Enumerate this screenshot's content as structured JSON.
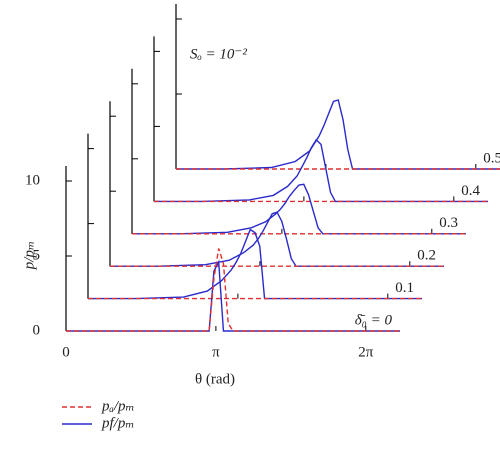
{
  "chart_data": {
    "type": "line",
    "annotation": "Sₒ = 10⁻²",
    "xlabel": "θ (rad)",
    "ylabel": "p/pₘ",
    "x": [
      0,
      1,
      2,
      2.5,
      2.8,
      3.0,
      3.1,
      3.2,
      3.3,
      3.4,
      3.5,
      3.6,
      3.7,
      3.8,
      3.9,
      4.0,
      4.5,
      7.0
    ],
    "xlim": [
      0,
      7.0
    ],
    "xticks": [
      {
        "value": 0,
        "label": "0"
      },
      {
        "value": 3.14159,
        "label": "π"
      },
      {
        "value": 6.28318,
        "label": "2π"
      }
    ],
    "ylim": [
      0,
      11
    ],
    "yticks": [
      0,
      5,
      10
    ],
    "layers": [
      "δ̄₀ = 0",
      "0.1",
      "0.2",
      "0.3",
      "0.4",
      "0.5"
    ],
    "series": [
      {
        "name": "pₐ/pₘ",
        "color": "#e03030",
        "dashed": true,
        "values": [
          [
            0,
            0,
            0,
            0,
            0,
            0,
            3.5,
            5.5,
            4.5,
            0.5,
            0,
            0,
            0,
            0,
            0,
            0,
            0,
            0
          ],
          [
            0,
            0,
            0,
            0,
            0,
            0,
            0,
            0,
            0,
            0,
            0,
            0,
            0,
            0,
            0,
            0,
            0,
            0
          ],
          [
            0,
            0,
            0,
            0,
            0,
            0,
            0,
            0,
            0,
            0,
            0,
            0,
            0,
            0,
            0,
            0,
            0,
            0
          ],
          [
            0,
            0,
            0,
            0,
            0,
            0,
            0,
            0,
            0,
            0,
            0,
            0,
            0,
            0,
            0,
            0,
            0,
            0
          ],
          [
            0,
            0,
            0,
            0,
            0,
            0,
            0,
            0,
            0,
            0,
            0,
            0,
            0,
            0,
            0,
            0,
            0,
            0
          ],
          [
            0,
            0,
            0,
            0,
            0,
            0,
            0,
            0,
            0,
            0,
            0,
            0,
            0,
            0,
            0,
            0,
            0,
            0
          ]
        ]
      },
      {
        "name": "pf/pₘ",
        "color": "#2a2acc",
        "dashed": false,
        "values": [
          [
            0,
            0,
            0,
            0,
            0,
            0,
            4.0,
            4.6,
            0,
            0,
            0,
            0,
            0,
            0,
            0,
            0,
            0,
            0
          ],
          [
            0,
            0,
            0.1,
            0.5,
            1.2,
            1.9,
            2.4,
            3.0,
            3.8,
            4.6,
            4.4,
            3.5,
            0,
            0,
            0,
            0,
            0,
            0
          ],
          [
            0,
            0,
            0.1,
            0.4,
            0.9,
            1.4,
            1.8,
            2.3,
            2.9,
            3.5,
            3.6,
            3.0,
            1.8,
            0.5,
            0,
            0,
            0,
            0
          ],
          [
            0,
            0,
            0.1,
            0.4,
            0.8,
            1.3,
            1.6,
            2.0,
            2.5,
            2.9,
            3.25,
            3.3,
            2.6,
            1.5,
            0.4,
            0,
            0,
            0
          ],
          [
            0,
            0,
            0.1,
            0.4,
            1.0,
            1.7,
            2.3,
            2.9,
            3.6,
            4.1,
            3.8,
            2.2,
            0.6,
            0,
            0,
            0,
            0,
            0
          ],
          [
            0,
            0,
            0.1,
            0.5,
            1.2,
            2.2,
            2.9,
            3.7,
            4.5,
            4.6,
            3.3,
            1.3,
            0,
            0,
            0,
            0,
            0,
            0
          ]
        ]
      }
    ]
  }
}
